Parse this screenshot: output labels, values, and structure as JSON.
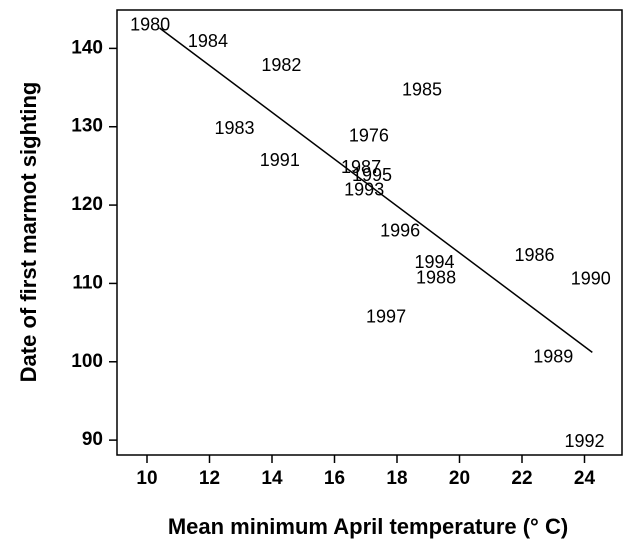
{
  "chart_data": {
    "type": "scatter",
    "xlabel": "Mean minimum April temperature (° C)",
    "ylabel": "Date of first marmot sighting",
    "xlim": [
      9.04,
      25.2
    ],
    "ylim": [
      88.1,
      144.9
    ],
    "xticks": [
      10,
      12,
      14,
      16,
      18,
      20,
      22,
      24
    ],
    "yticks": [
      90,
      100,
      110,
      120,
      130,
      140
    ],
    "series": [
      {
        "labels": [
          "1980",
          "1984",
          "1982",
          "1985",
          "1983",
          "1976",
          "1991",
          "1987",
          "1995",
          "1993",
          "1996",
          "1994",
          "1988",
          "1986",
          "1990",
          "1997",
          "1989",
          "1992"
        ],
        "x": [
          10.1,
          11.95,
          14.3,
          18.8,
          12.8,
          17.1,
          14.25,
          16.85,
          17.2,
          16.95,
          18.1,
          19.2,
          19.25,
          22.4,
          24.2,
          17.65,
          23.0,
          24.0
        ],
        "values": [
          142.9,
          140.8,
          137.7,
          134.6,
          129.7,
          128.7,
          125.6,
          124.7,
          123.7,
          121.8,
          116.6,
          112.6,
          110.6,
          113.5,
          110.5,
          105.6,
          100.5,
          89.7
        ],
        "color": "#000000"
      }
    ],
    "trend_line": {
      "x": [
        10.4,
        24.25
      ],
      "values": [
        142.6,
        101.2
      ],
      "color": "#000000"
    }
  }
}
